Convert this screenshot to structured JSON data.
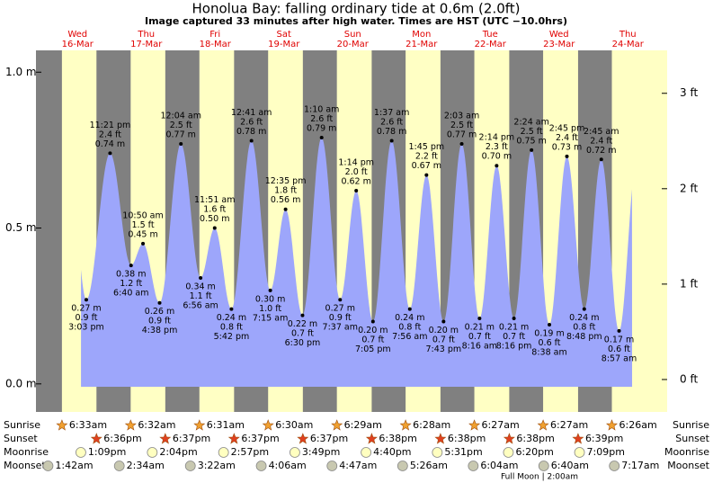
{
  "chart_data": {
    "type": "tide",
    "title": "Honolua Bay: falling  ordinary tide at 0.6m (2.0ft)",
    "subtitle": "Image captured 33 minutes after high water. Times are HST (UTC −10.0hrs)",
    "days": [
      "Wed",
      "Thu",
      "Fri",
      "Sat",
      "Sun",
      "Mon",
      "Tue",
      "Wed",
      "Thu"
    ],
    "dates": [
      "16-Mar",
      "17-Mar",
      "18-Mar",
      "19-Mar",
      "20-Mar",
      "21-Mar",
      "22-Mar",
      "23-Mar",
      "24-Mar"
    ],
    "tides": {
      "times": [
        "3:03 pm",
        "11:21 pm",
        "6:40 am",
        "10:50 am",
        "4:38 pm",
        "12:04 am",
        "6:56 am",
        "11:51 am",
        "5:42 pm",
        "12:41 am",
        "7:15 am",
        "12:35 pm",
        "6:30 pm",
        "1:10 am",
        "7:37 am",
        "1:14 pm",
        "7:05 pm",
        "1:37 am",
        "7:56 am",
        "1:45 pm",
        "7:43 pm",
        "2:03 am",
        "8:16 am",
        "2:14 pm",
        "8:16 pm",
        "2:24 am",
        "8:38 am",
        "2:45 pm",
        "8:48 pm",
        "2:45 am",
        "8:57 am"
      ],
      "values": [
        0.27,
        0.74,
        0.38,
        0.45,
        0.26,
        0.77,
        0.34,
        0.5,
        0.24,
        0.78,
        0.3,
        0.56,
        0.22,
        0.79,
        0.27,
        0.62,
        0.2,
        0.78,
        0.24,
        0.67,
        0.2,
        0.77,
        0.21,
        0.7,
        0.21,
        0.75,
        0.19,
        0.73,
        0.24,
        0.72,
        0.17
      ],
      "value_labels": [
        "0.27 m",
        "0.74 m",
        "0.38 m",
        "0.45 m",
        "0.26 m",
        "0.77 m",
        "0.34 m",
        "0.50 m",
        "0.24 m",
        "0.78 m",
        "0.30 m",
        "0.56 m",
        "0.22 m",
        "0.79 m",
        "0.27 m",
        "0.62 m",
        "0.20 m",
        "0.78 m",
        "0.24 m",
        "0.67 m",
        "0.20 m",
        "0.77 m",
        "0.21 m",
        "0.70 m",
        "0.21 m",
        "0.75 m",
        "0.19 m",
        "0.73 m",
        "0.24 m",
        "0.72 m",
        "0.17 m"
      ],
      "ft_labels": [
        "0.9 ft",
        "2.4 ft",
        "1.2 ft",
        "1.5 ft",
        "0.9 ft",
        "2.5 ft",
        "1.1 ft",
        "1.6 ft",
        "0.8 ft",
        "2.6 ft",
        "1.0 ft",
        "1.8 ft",
        "0.7 ft",
        "2.6 ft",
        "0.9 ft",
        "2.0 ft",
        "0.7 ft",
        "2.6 ft",
        "0.8 ft",
        "2.2 ft",
        "0.7 ft",
        "2.5 ft",
        "0.7 ft",
        "2.3 ft",
        "0.7 ft",
        "2.5 ft",
        "0.6 ft",
        "2.4 ft",
        "0.8 ft",
        "2.4 ft",
        "0.6 ft"
      ]
    },
    "ylim": [
      -0.09,
      1.07
    ],
    "yticks": [
      {
        "value": 0,
        "label": "0.0 m"
      },
      {
        "value": 0.5,
        "label": "0.5 m"
      },
      {
        "value": 1,
        "label": "1.0 m"
      }
    ],
    "y2lim": [
      -0.34,
      3.45
    ],
    "y2ticks": [
      {
        "value": 0,
        "label": "0 ft"
      },
      {
        "value": 1,
        "label": "1 ft"
      },
      {
        "value": 2,
        "label": "2 ft"
      },
      {
        "value": 3,
        "label": "3 ft"
      }
    ],
    "colors": {
      "night": "#808080",
      "day": "#ffffc4",
      "water": "#9da6fb",
      "day_name": "#e00000"
    },
    "rows": [
      {
        "name": "Sunrise",
        "color": "#f0a030",
        "times": [
          "6:33am",
          "6:32am",
          "6:31am",
          "6:30am",
          "6:29am",
          "6:28am",
          "6:27am",
          "6:27am",
          "6:26am"
        ]
      },
      {
        "name": "Sunset",
        "color": "#e04020",
        "times": [
          "6:36pm",
          "6:37pm",
          "6:37pm",
          "6:37pm",
          "6:38pm",
          "6:38pm",
          "6:38pm",
          "6:39pm"
        ]
      },
      {
        "name": "Moonrise",
        "color": "#ffffc0",
        "times": [
          "1:09pm",
          "2:04pm",
          "2:57pm",
          "3:49pm",
          "4:40pm",
          "5:31pm",
          "6:20pm",
          "7:09pm"
        ]
      },
      {
        "name": "Moonset",
        "color": "#c8c8b0",
        "times": [
          "1:42am",
          "2:34am",
          "3:22am",
          "4:06am",
          "4:47am",
          "5:26am",
          "6:04am",
          "6:40am",
          "7:17am"
        ]
      }
    ],
    "footer": "Full Moon | 2:00am"
  }
}
